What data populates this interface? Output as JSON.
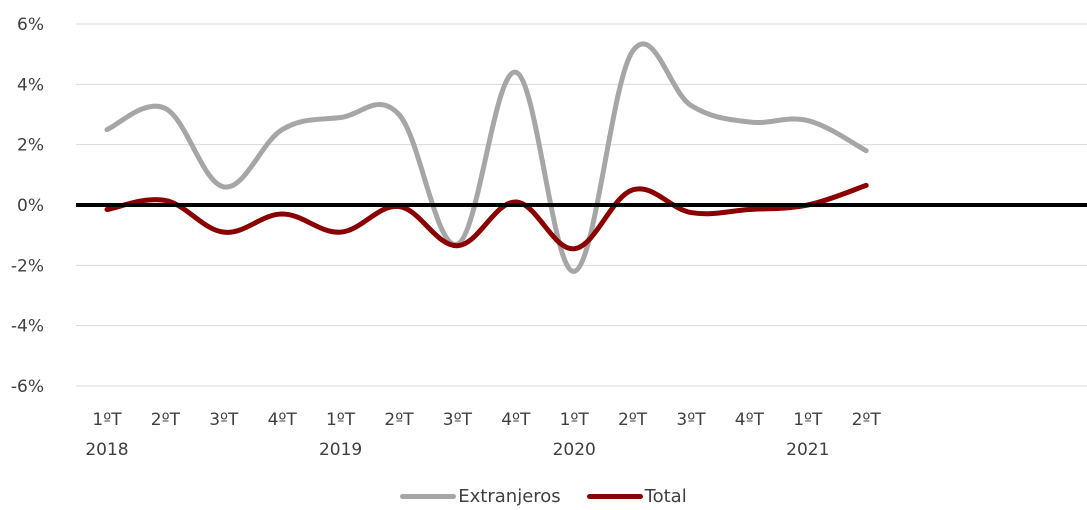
{
  "chart_data": {
    "type": "line",
    "smooth": true,
    "title": "",
    "xlabel": "",
    "ylabel": "",
    "categories": [
      "1ºT",
      "2ºT",
      "3ºT",
      "4ºT",
      "1ºT",
      "2ºT",
      "3ºT",
      "4ºT",
      "1ºT",
      "2ºT",
      "3ºT",
      "4ºT",
      "1ºT",
      "2ºT"
    ],
    "year_labels": [
      {
        "category_index": 0,
        "label": "2018"
      },
      {
        "category_index": 4,
        "label": "2019"
      },
      {
        "category_index": 8,
        "label": "2020"
      },
      {
        "category_index": 12,
        "label": "2021"
      }
    ],
    "series": [
      {
        "name": "Extranjeros",
        "color": "#a6a6a6",
        "values": [
          2.5,
          3.2,
          0.6,
          2.5,
          2.9,
          3.0,
          -1.3,
          4.4,
          -2.2,
          5.1,
          3.3,
          2.75,
          2.8,
          1.8
        ]
      },
      {
        "name": "Total",
        "color": "#8b0000",
        "values": [
          -0.15,
          0.15,
          -0.9,
          -0.3,
          -0.9,
          -0.05,
          -1.35,
          0.1,
          -1.45,
          0.5,
          -0.25,
          -0.15,
          0.0,
          0.65
        ]
      }
    ],
    "ylim": [
      -6,
      6
    ],
    "yticks": [
      6,
      4,
      2,
      0,
      -2,
      -4,
      -6
    ],
    "ytick_labels": [
      "6%",
      "4%",
      "2%",
      "0%",
      "-2%",
      "-4%",
      "-6%"
    ],
    "grid": true,
    "zero_line_color": "#000000",
    "grid_color": "#d9d9d9",
    "legend_position": "bottom"
  }
}
